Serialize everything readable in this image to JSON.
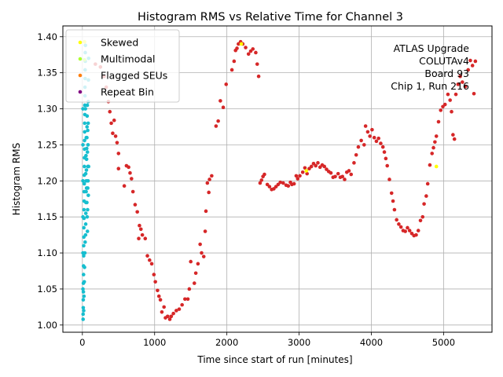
{
  "chart_data": {
    "type": "scatter",
    "title": "Histogram RMS vs Relative Time for Channel 3",
    "xlabel": "Time since start of run [minutes]",
    "ylabel": "Histogram RMS",
    "xlim": [
      -270,
      5670
    ],
    "ylim": [
      0.99,
      1.415
    ],
    "xticks": [
      0,
      1000,
      2000,
      3000,
      4000,
      5000
    ],
    "xtick_labels": [
      "0",
      "1000",
      "2000",
      "3000",
      "4000",
      "5000"
    ],
    "yticks": [
      1.0,
      1.05,
      1.1,
      1.15,
      1.2,
      1.25,
      1.3,
      1.35,
      1.4
    ],
    "ytick_labels": [
      "1.00",
      "1.05",
      "1.10",
      "1.15",
      "1.20",
      "1.25",
      "1.30",
      "1.35",
      "1.40"
    ],
    "grid": true,
    "legend_position": "top-left",
    "legend": [
      {
        "label": "Skewed",
        "color": "#ffff00"
      },
      {
        "label": "Multimodal",
        "color": "#adff2f"
      },
      {
        "label": "Flagged SEUs",
        "color": "#ff7f0e"
      },
      {
        "label": "Repeat Bin",
        "color": "#800080"
      }
    ],
    "annotation": [
      "ATLAS Upgrade",
      "COLUTAv4",
      "Board 93",
      "Chip 1, Run 216"
    ],
    "series": [
      {
        "color": "#d62728",
        "points": [
          [
            180,
            1.362
          ],
          [
            250,
            1.358
          ],
          [
            300,
            1.345
          ],
          [
            330,
            1.33
          ],
          [
            360,
            1.31
          ],
          [
            380,
            1.296
          ],
          [
            400,
            1.28
          ],
          [
            420,
            1.266
          ],
          [
            440,
            1.284
          ],
          [
            460,
            1.262
          ],
          [
            480,
            1.253
          ],
          [
            500,
            1.238
          ],
          [
            500,
            1.217
          ],
          [
            580,
            1.193
          ],
          [
            610,
            1.221
          ],
          [
            640,
            1.219
          ],
          [
            660,
            1.211
          ],
          [
            680,
            1.203
          ],
          [
            700,
            1.185
          ],
          [
            730,
            1.167
          ],
          [
            760,
            1.157
          ],
          [
            790,
            1.138
          ],
          [
            810,
            1.133
          ],
          [
            830,
            1.125
          ],
          [
            780,
            1.12
          ],
          [
            870,
            1.12
          ],
          [
            900,
            1.096
          ],
          [
            930,
            1.09
          ],
          [
            960,
            1.085
          ],
          [
            990,
            1.07
          ],
          [
            1010,
            1.06
          ],
          [
            1040,
            1.048
          ],
          [
            1060,
            1.04
          ],
          [
            1080,
            1.035
          ],
          [
            1100,
            1.018
          ],
          [
            1130,
            1.025
          ],
          [
            1150,
            1.01
          ],
          [
            1180,
            1.012
          ],
          [
            1210,
            1.008
          ],
          [
            1230,
            1.012
          ],
          [
            1260,
            1.016
          ],
          [
            1300,
            1.02
          ],
          [
            1340,
            1.022
          ],
          [
            1380,
            1.028
          ],
          [
            1420,
            1.036
          ],
          [
            1460,
            1.036
          ],
          [
            1480,
            1.05
          ],
          [
            1500,
            1.088
          ],
          [
            1550,
            1.058
          ],
          [
            1570,
            1.072
          ],
          [
            1600,
            1.085
          ],
          [
            1630,
            1.112
          ],
          [
            1650,
            1.1
          ],
          [
            1680,
            1.095
          ],
          [
            1700,
            1.13
          ],
          [
            1710,
            1.158
          ],
          [
            1730,
            1.197
          ],
          [
            1760,
            1.202
          ],
          [
            1790,
            1.207
          ],
          [
            1750,
            1.184
          ],
          [
            1850,
            1.276
          ],
          [
            1880,
            1.283
          ],
          [
            1910,
            1.311
          ],
          [
            1950,
            1.302
          ],
          [
            1990,
            1.334
          ],
          [
            2070,
            1.354
          ],
          [
            2100,
            1.366
          ],
          [
            2120,
            1.381
          ],
          [
            2140,
            1.384
          ],
          [
            2160,
            1.39
          ],
          [
            2190,
            1.393
          ],
          [
            2220,
            1.39
          ],
          [
            2260,
            1.385
          ],
          [
            2300,
            1.376
          ],
          [
            2330,
            1.38
          ],
          [
            2360,
            1.383
          ],
          [
            2400,
            1.378
          ],
          [
            2420,
            1.362
          ],
          [
            2440,
            1.345
          ],
          [
            2460,
            1.197
          ],
          [
            2480,
            1.201
          ],
          [
            2500,
            1.206
          ],
          [
            2520,
            1.209
          ],
          [
            2560,
            1.195
          ],
          [
            2590,
            1.192
          ],
          [
            2620,
            1.188
          ],
          [
            2650,
            1.189
          ],
          [
            2680,
            1.192
          ],
          [
            2710,
            1.195
          ],
          [
            2740,
            1.198
          ],
          [
            2780,
            1.197
          ],
          [
            2820,
            1.194
          ],
          [
            2850,
            1.193
          ],
          [
            2880,
            1.198
          ],
          [
            2900,
            1.195
          ],
          [
            2930,
            1.196
          ],
          [
            2960,
            1.207
          ],
          [
            2980,
            1.203
          ],
          [
            3010,
            1.207
          ],
          [
            3050,
            1.212
          ],
          [
            3080,
            1.218
          ],
          [
            3110,
            1.21
          ],
          [
            3140,
            1.217
          ],
          [
            3170,
            1.22
          ],
          [
            3200,
            1.224
          ],
          [
            3230,
            1.221
          ],
          [
            3260,
            1.225
          ],
          [
            3290,
            1.219
          ],
          [
            3320,
            1.222
          ],
          [
            3350,
            1.22
          ],
          [
            3380,
            1.216
          ],
          [
            3410,
            1.213
          ],
          [
            3440,
            1.211
          ],
          [
            3470,
            1.205
          ],
          [
            3500,
            1.206
          ],
          [
            3540,
            1.21
          ],
          [
            3570,
            1.205
          ],
          [
            3600,
            1.206
          ],
          [
            3630,
            1.202
          ],
          [
            3660,
            1.212
          ],
          [
            3690,
            1.214
          ],
          [
            3720,
            1.209
          ],
          [
            3760,
            1.225
          ],
          [
            3790,
            1.236
          ],
          [
            3820,
            1.247
          ],
          [
            3860,
            1.256
          ],
          [
            3900,
            1.25
          ],
          [
            3920,
            1.276
          ],
          [
            3950,
            1.268
          ],
          [
            3980,
            1.262
          ],
          [
            4010,
            1.271
          ],
          [
            4040,
            1.26
          ],
          [
            4070,
            1.255
          ],
          [
            4100,
            1.259
          ],
          [
            4130,
            1.252
          ],
          [
            4160,
            1.247
          ],
          [
            4180,
            1.24
          ],
          [
            4200,
            1.231
          ],
          [
            4220,
            1.221
          ],
          [
            4250,
            1.202
          ],
          [
            4280,
            1.183
          ],
          [
            4300,
            1.172
          ],
          [
            4320,
            1.16
          ],
          [
            4350,
            1.146
          ],
          [
            4380,
            1.14
          ],
          [
            4410,
            1.136
          ],
          [
            4440,
            1.131
          ],
          [
            4470,
            1.13
          ],
          [
            4500,
            1.135
          ],
          [
            4530,
            1.131
          ],
          [
            4560,
            1.127
          ],
          [
            4590,
            1.124
          ],
          [
            4620,
            1.125
          ],
          [
            4650,
            1.131
          ],
          [
            4680,
            1.145
          ],
          [
            4710,
            1.15
          ],
          [
            4730,
            1.168
          ],
          [
            4760,
            1.179
          ],
          [
            4780,
            1.196
          ],
          [
            4810,
            1.222
          ],
          [
            4840,
            1.238
          ],
          [
            4860,
            1.246
          ],
          [
            4880,
            1.254
          ],
          [
            4900,
            1.262
          ],
          [
            4930,
            1.282
          ],
          [
            4960,
            1.298
          ],
          [
            4990,
            1.303
          ],
          [
            5020,
            1.306
          ],
          [
            5060,
            1.32
          ],
          [
            5090,
            1.312
          ],
          [
            5110,
            1.296
          ],
          [
            5130,
            1.264
          ],
          [
            5150,
            1.258
          ],
          [
            5170,
            1.32
          ],
          [
            5200,
            1.334
          ],
          [
            5230,
            1.345
          ],
          [
            5260,
            1.337
          ],
          [
            5300,
            1.331
          ],
          [
            5340,
            1.354
          ],
          [
            5370,
            1.367
          ],
          [
            5400,
            1.36
          ],
          [
            5420,
            1.321
          ],
          [
            5440,
            1.366
          ]
        ]
      },
      {
        "color": "#17becf",
        "points": [
          [
            10,
            1.008
          ],
          [
            10,
            1.015
          ],
          [
            12,
            1.024
          ],
          [
            12,
            1.035
          ],
          [
            14,
            1.046
          ],
          [
            14,
            1.058
          ],
          [
            16,
            1.07
          ],
          [
            16,
            1.082
          ],
          [
            18,
            1.096
          ],
          [
            18,
            1.11
          ],
          [
            20,
            1.122
          ],
          [
            20,
            1.135
          ],
          [
            22,
            1.148
          ],
          [
            22,
            1.16
          ],
          [
            24,
            1.172
          ],
          [
            24,
            1.185
          ],
          [
            26,
            1.196
          ],
          [
            26,
            1.208
          ],
          [
            28,
            1.22
          ],
          [
            28,
            1.232
          ],
          [
            30,
            1.244
          ],
          [
            30,
            1.256
          ],
          [
            32,
            1.268
          ],
          [
            32,
            1.28
          ],
          [
            34,
            1.292
          ],
          [
            34,
            1.305
          ],
          [
            36,
            1.318
          ],
          [
            36,
            1.33
          ],
          [
            38,
            1.342
          ],
          [
            38,
            1.354
          ],
          [
            40,
            1.366
          ],
          [
            40,
            1.378
          ],
          [
            42,
            1.388
          ],
          [
            44,
            1.125
          ],
          [
            46,
            1.14
          ],
          [
            48,
            1.155
          ],
          [
            50,
            1.17
          ],
          [
            52,
            1.185
          ],
          [
            54,
            1.2
          ],
          [
            56,
            1.215
          ],
          [
            58,
            1.23
          ],
          [
            60,
            1.245
          ],
          [
            62,
            1.26
          ],
          [
            64,
            1.275
          ],
          [
            66,
            1.29
          ],
          [
            68,
            1.305
          ],
          [
            70,
            1.13
          ],
          [
            72,
            1.16
          ],
          [
            74,
            1.19
          ],
          [
            76,
            1.22
          ],
          [
            78,
            1.25
          ],
          [
            80,
            1.28
          ],
          [
            82,
            1.31
          ],
          [
            84,
            1.34
          ],
          [
            86,
            1.37
          ],
          [
            8,
            1.05
          ],
          [
            8,
            1.1
          ],
          [
            8,
            1.15
          ],
          [
            8,
            1.2
          ],
          [
            8,
            1.25
          ],
          [
            8,
            1.3
          ],
          [
            18,
            1.02
          ],
          [
            22,
            1.04
          ],
          [
            26,
            1.06
          ],
          [
            30,
            1.08
          ],
          [
            34,
            1.1
          ],
          [
            38,
            1.115
          ],
          [
            42,
            1.3
          ],
          [
            46,
            1.21
          ],
          [
            50,
            1.235
          ],
          [
            54,
            1.26
          ],
          [
            58,
            1.19
          ],
          [
            62,
            1.17
          ],
          [
            66,
            1.15
          ],
          [
            70,
            1.24
          ],
          [
            74,
            1.27
          ],
          [
            78,
            1.2
          ],
          [
            82,
            1.18
          ],
          [
            86,
            1.22
          ]
        ]
      },
      {
        "color": "#ffff00",
        "points": [
          [
            30,
            1.393
          ],
          [
            2200,
            1.39
          ],
          [
            3100,
            1.214
          ],
          [
            4900,
            1.22
          ]
        ]
      },
      {
        "color": "#adff2f",
        "points": [
          [
            30,
            1.368
          ]
        ]
      }
    ]
  }
}
